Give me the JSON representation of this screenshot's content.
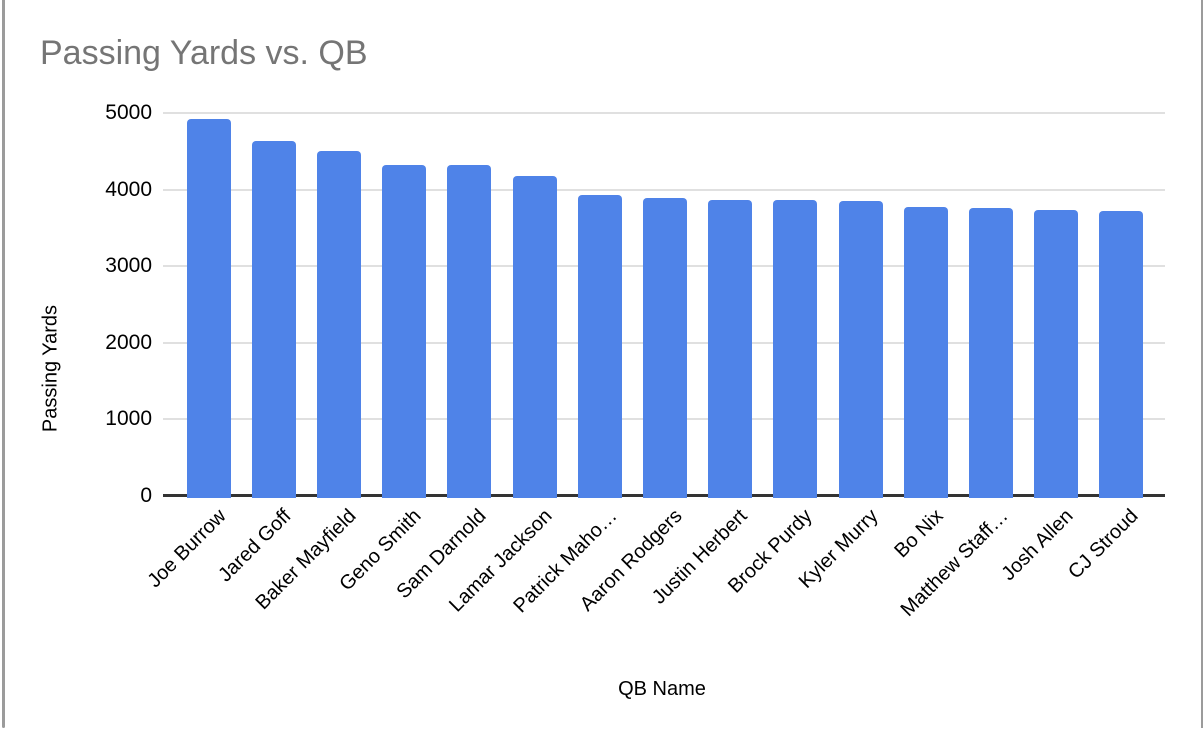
{
  "window": {
    "background": "#ffffff",
    "border_color": "#9b9b9b"
  },
  "chart_data": {
    "type": "bar",
    "title": "Passing Yards vs. QB",
    "xlabel": "QB Name",
    "ylabel": "Passing Yards",
    "categories": [
      "Joe Burrow",
      "Jared Goff",
      "Baker Mayfield",
      "Geno Smith",
      "Sam Darnold",
      "Lamar Jackson",
      "Patrick Maho…",
      "Aaron Rodgers",
      "Justin Herbert",
      "Brock Purdy",
      "Kyler Murry",
      "Bo Nix",
      "Matthew Staff…",
      "Josh Allen",
      "CJ Stroud"
    ],
    "values": [
      4918,
      4629,
      4500,
      4320,
      4319,
      4172,
      3928,
      3897,
      3870,
      3864,
      3851,
      3775,
      3762,
      3731,
      3727
    ],
    "yticks": [
      0,
      1000,
      2000,
      3000,
      4000,
      5000
    ],
    "ylim": [
      0,
      5000
    ],
    "grid": true,
    "legend": false,
    "colors": {
      "bar": "#4f83e8",
      "gridline": "#e0e0e0",
      "axis_line": "#333333",
      "title_text": "#757575",
      "axis_text": "#000000"
    }
  }
}
